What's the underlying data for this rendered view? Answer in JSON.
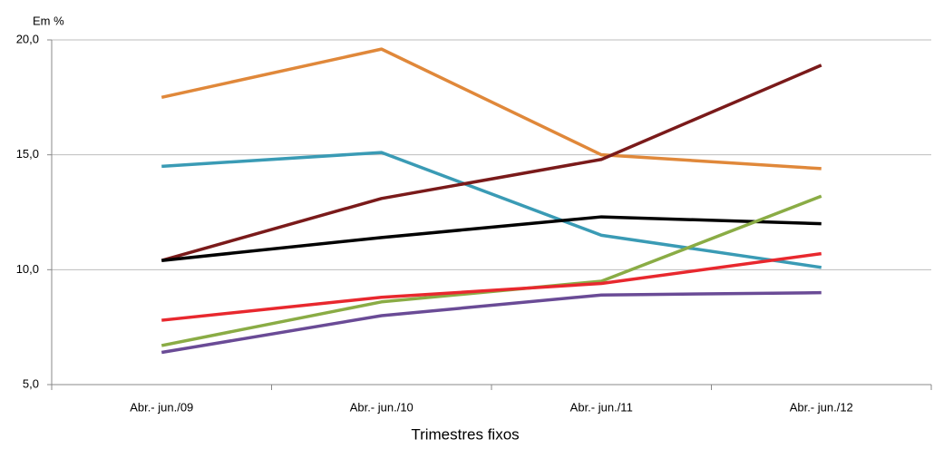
{
  "chart_data": {
    "type": "line",
    "y_label": "Em %",
    "x_label": "Trimestres fixos",
    "categories": [
      "Abr.- jun./09",
      "Abr.- jun./10",
      "Abr.- jun./11",
      "Abr.- jun./12"
    ],
    "series": [
      {
        "color": "#e0883a",
        "values": [
          17.5,
          19.6,
          15.0,
          14.4
        ]
      },
      {
        "color": "#3a9bb5",
        "values": [
          14.5,
          15.1,
          11.5,
          10.1
        ]
      },
      {
        "color": "#7a1a1a",
        "values": [
          10.4,
          13.1,
          14.8,
          18.9
        ]
      },
      {
        "color": "#000000",
        "values": [
          10.4,
          11.4,
          12.3,
          12.0
        ]
      },
      {
        "color": "#8aac45",
        "values": [
          6.7,
          8.6,
          9.5,
          13.2
        ]
      },
      {
        "color": "#e8282e",
        "values": [
          7.8,
          8.8,
          9.4,
          10.7
        ]
      },
      {
        "color": "#6a4b96",
        "values": [
          6.4,
          8.0,
          8.9,
          9.0
        ]
      }
    ],
    "ylim": [
      5,
      20
    ],
    "yticks": [
      {
        "value": 5,
        "label": "5,0"
      },
      {
        "value": 10,
        "label": "10,0"
      },
      {
        "value": 15,
        "label": "15,0"
      },
      {
        "value": 20,
        "label": "20,0"
      }
    ],
    "grid": true
  }
}
